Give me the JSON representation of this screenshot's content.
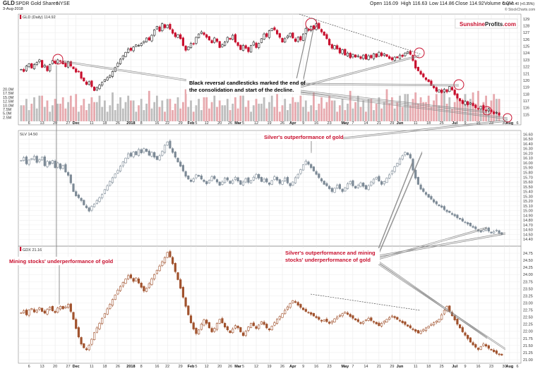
{
  "header": {
    "symbol": "GLD",
    "name": "SPDR Gold Shares",
    "exchange": "NYSE",
    "date": "3-Aug-2018",
    "open": "Open 116.09",
    "high": "High 116.63",
    "low": "Low 114.86",
    "close": "Close 114.92",
    "volume": "Volume 6.0M",
    "change": "Chg +0.40 (+0.35%)",
    "copyright": "© StockCharts.com"
  },
  "brand": {
    "part1": "Sunshine",
    "part2": "Profits",
    "part3": ".com"
  },
  "colors": {
    "up": "#222222",
    "down": "#c8102e",
    "slv": "#7d8a96",
    "gdx": "#a0522d",
    "vol_up": "#bdbdbd",
    "vol_down": "#e7a9ae",
    "ann_black": "#000000",
    "ann_red": "#c8102e"
  },
  "x_axis": {
    "ticks": [
      {
        "label": "6",
        "i": 3
      },
      {
        "label": "13",
        "i": 8
      },
      {
        "label": "20",
        "i": 13
      },
      {
        "label": "27",
        "i": 18
      },
      {
        "label": "Dec",
        "i": 21,
        "bold": true
      },
      {
        "label": "11",
        "i": 27
      },
      {
        "label": "18",
        "i": 32
      },
      {
        "label": "26",
        "i": 37
      },
      {
        "label": "2018",
        "i": 42,
        "bold": true
      },
      {
        "label": "8",
        "i": 46
      },
      {
        "label": "16",
        "i": 52
      },
      {
        "label": "22",
        "i": 56
      },
      {
        "label": "29",
        "i": 61
      },
      {
        "label": "Feb",
        "i": 65,
        "bold": true
      },
      {
        "label": "5",
        "i": 67
      },
      {
        "label": "12",
        "i": 71
      },
      {
        "label": "20",
        "i": 76
      },
      {
        "label": "26",
        "i": 80
      },
      {
        "label": "Mar",
        "i": 83,
        "bold": true
      },
      {
        "label": "5",
        "i": 85
      },
      {
        "label": "12",
        "i": 90
      },
      {
        "label": "19",
        "i": 95
      },
      {
        "label": "26",
        "i": 100
      },
      {
        "label": "Apr",
        "i": 104,
        "bold": true
      },
      {
        "label": "9",
        "i": 108
      },
      {
        "label": "16",
        "i": 113
      },
      {
        "label": "23",
        "i": 118
      },
      {
        "label": "May",
        "i": 124,
        "bold": true
      },
      {
        "label": "7",
        "i": 127
      },
      {
        "label": "14",
        "i": 132
      },
      {
        "label": "21",
        "i": 137
      },
      {
        "label": "29",
        "i": 142
      },
      {
        "label": "Jun",
        "i": 145,
        "bold": true
      },
      {
        "label": "11",
        "i": 151
      },
      {
        "label": "18",
        "i": 156
      },
      {
        "label": "25",
        "i": 161
      },
      {
        "label": "Jul",
        "i": 166,
        "bold": true
      },
      {
        "label": "9",
        "i": 170
      },
      {
        "label": "16",
        "i": 175
      },
      {
        "label": "23",
        "i": 180
      },
      {
        "label": "30",
        "i": 185
      },
      {
        "label": "Aug",
        "i": 187,
        "bold": true
      },
      {
        "label": "6",
        "i": 190
      }
    ]
  },
  "annotations": {
    "reversal_line1": "Black reversal candlesticks marked the end of",
    "reversal_line2": "the consolidation and start of the decline.",
    "silver_outperf": "Silver's outperformance of gold",
    "miners_underperf": "Mining stocks' underperformance of gold",
    "silver_miners_line1": "Silver's outperformance and mining",
    "silver_miners_line2": "stocks' underperformance of gold"
  },
  "chart_data": [
    {
      "type": "candlestick",
      "title": "GLD (Daily) 114.92",
      "ylim": [
        114.0,
        129.5
      ],
      "yticks": [
        115,
        116,
        117,
        118,
        119,
        120,
        121,
        122,
        123,
        124,
        125,
        126,
        127,
        128,
        129
      ],
      "closes": [
        121.6,
        121.3,
        122.1,
        122.4,
        121.8,
        122.3,
        122.6,
        123.0,
        121.9,
        122.2,
        121.4,
        122.3,
        122.9,
        122.5,
        123.0,
        122.8,
        122.4,
        122.0,
        122.7,
        122.1,
        121.7,
        121.2,
        121.3,
        120.3,
        119.9,
        119.4,
        119.8,
        119.1,
        118.5,
        118.9,
        119.3,
        119.7,
        120.1,
        120.4,
        120.7,
        121.3,
        121.9,
        122.5,
        123.1,
        123.6,
        124.1,
        124.6,
        124.4,
        124.9,
        125.2,
        125.1,
        125.4,
        125.7,
        126.2,
        125.9,
        126.6,
        127.4,
        127.9,
        127.2,
        128.3,
        127.7,
        128.1,
        127.5,
        126.9,
        126.4,
        126.7,
        126.1,
        125.1,
        124.4,
        124.9,
        125.4,
        125.3,
        126.3,
        126.8,
        127.1,
        126.7,
        126.3,
        125.9,
        125.5,
        126.2,
        125.7,
        124.8,
        125.2,
        125.6,
        126.3,
        126.0,
        126.6,
        125.6,
        125.1,
        124.5,
        125.1,
        124.7,
        124.2,
        125.1,
        125.6,
        124.8,
        125.4,
        126.1,
        126.8,
        126.4,
        127.3,
        127.6,
        127.4,
        126.8,
        126.3,
        125.6,
        126.1,
        126.5,
        126.9,
        126.2,
        125.7,
        126.3,
        125.9,
        126.8,
        127.6,
        127.3,
        127.9,
        127.5,
        128.3,
        127.6,
        127.1,
        126.6,
        126.1,
        125.2,
        124.7,
        125.1,
        124.6,
        124.0,
        124.5,
        123.7,
        124.0,
        123.3,
        123.8,
        123.4,
        123.6,
        123.2,
        123.7,
        123.1,
        123.6,
        123.3,
        123.9,
        123.4,
        124.1,
        123.6,
        123.9,
        123.5,
        123.2,
        123.0,
        123.4,
        123.3,
        123.7,
        123.5,
        124.0,
        124.2,
        123.8,
        122.9,
        121.8,
        121.4,
        120.9,
        120.5,
        120.1,
        119.8,
        119.3,
        118.9,
        118.4,
        118.6,
        118.2,
        118.7,
        118.3,
        119.1,
        118.6,
        117.9,
        117.4,
        117.0,
        116.6,
        116.9,
        116.4,
        116.7,
        116.3,
        116.0,
        115.8,
        116.2,
        115.7,
        115.5,
        115.8,
        115.4,
        115.1,
        115.3,
        114.9
      ],
      "volume_ylim": [
        0,
        22
      ],
      "volume_yticks": [
        {
          "v": 2.5,
          "label": "2.5M"
        },
        {
          "v": 5.0,
          "label": "5.0M"
        },
        {
          "v": 7.5,
          "label": "7.5M"
        },
        {
          "v": 10.0,
          "label": "10.0M"
        },
        {
          "v": 12.5,
          "label": "12.5M"
        },
        {
          "v": 15.0,
          "label": "15.0M"
        },
        {
          "v": 17.5,
          "label": "17.5M"
        },
        {
          "v": 20.0,
          "label": "20.0M"
        }
      ]
    },
    {
      "type": "candlestick",
      "title": "SLV 14.50",
      "ylim": [
        14.3,
        16.65
      ],
      "yticks": [
        14.4,
        14.5,
        14.6,
        14.7,
        14.8,
        14.9,
        15.0,
        15.1,
        15.2,
        15.3,
        15.4,
        15.5,
        15.6,
        15.7,
        15.8,
        15.9,
        16.0,
        16.1,
        16.2,
        16.3,
        16.4,
        16.5,
        16.6
      ],
      "closes": [
        16.05,
        16.11,
        15.98,
        16.06,
        16.09,
        16.14,
        16.01,
        16.07,
        16.12,
        15.94,
        16.03,
        15.97,
        16.05,
        15.9,
        16.0,
        15.88,
        15.95,
        15.81,
        15.74,
        15.58,
        15.4,
        15.31,
        15.27,
        15.21,
        15.12,
        15.06,
        14.99,
        15.09,
        15.14,
        15.21,
        15.27,
        15.34,
        15.44,
        15.52,
        15.61,
        15.69,
        15.77,
        15.84,
        15.93,
        16.02,
        16.1,
        16.19,
        16.14,
        16.23,
        16.17,
        16.28,
        16.21,
        16.3,
        16.24,
        16.16,
        16.22,
        16.12,
        16.07,
        16.15,
        16.24,
        16.37,
        16.44,
        16.31,
        16.22,
        16.12,
        16.02,
        15.93,
        15.83,
        15.72,
        15.66,
        15.61,
        15.67,
        15.75,
        15.72,
        15.66,
        15.61,
        15.56,
        15.64,
        15.71,
        15.67,
        15.6,
        15.53,
        15.6,
        15.68,
        15.64,
        15.57,
        15.63,
        15.7,
        15.62,
        15.55,
        15.6,
        15.67,
        15.59,
        15.63,
        15.7,
        15.76,
        15.68,
        15.61,
        15.66,
        15.6,
        15.55,
        15.63,
        15.71,
        15.64,
        15.57,
        15.62,
        15.68,
        15.58,
        15.52,
        15.6,
        15.69,
        15.76,
        15.86,
        15.96,
        16.04,
        15.97,
        15.9,
        15.83,
        15.76,
        15.69,
        15.62,
        15.55,
        15.52,
        15.46,
        15.4,
        15.47,
        15.53,
        15.46,
        15.4,
        15.48,
        15.56,
        15.61,
        15.52,
        15.47,
        15.53,
        15.58,
        15.51,
        15.45,
        15.52,
        15.6,
        15.66,
        15.7,
        15.62,
        15.55,
        15.61,
        15.68,
        15.75,
        15.83,
        15.92,
        15.99,
        16.08,
        16.15,
        16.22,
        16.17,
        16.1,
        15.85,
        15.68,
        15.55,
        15.45,
        15.4,
        15.34,
        15.28,
        15.24,
        15.18,
        15.14,
        15.1,
        15.07,
        15.02,
        14.98,
        14.96,
        14.92,
        14.89,
        14.85,
        14.82,
        14.78,
        14.75,
        14.72,
        14.68,
        14.65,
        14.62,
        14.58,
        14.55,
        14.6,
        14.63,
        14.57,
        14.53,
        14.56,
        14.59,
        14.53,
        14.5
      ]
    },
    {
      "type": "candlestick",
      "title": "GDX 21.16",
      "ylim": [
        20.95,
        24.95
      ],
      "yticks": [
        21.0,
        21.25,
        21.5,
        21.75,
        22.0,
        22.25,
        22.5,
        22.75,
        23.0,
        23.25,
        23.5,
        23.75,
        24.0,
        24.25,
        24.5,
        24.75
      ],
      "closes": [
        22.65,
        22.72,
        22.58,
        22.75,
        22.8,
        22.68,
        22.74,
        22.83,
        22.7,
        22.64,
        22.77,
        22.85,
        22.72,
        22.66,
        22.82,
        22.88,
        22.79,
        22.86,
        22.95,
        22.7,
        22.42,
        22.1,
        21.8,
        21.55,
        21.42,
        21.35,
        21.51,
        21.72,
        21.95,
        22.12,
        22.28,
        22.46,
        22.62,
        22.79,
        22.95,
        23.12,
        23.28,
        23.45,
        23.58,
        23.72,
        23.84,
        23.96,
        23.88,
        23.76,
        23.88,
        23.7,
        23.55,
        23.42,
        23.52,
        23.68,
        23.85,
        24.0,
        24.15,
        24.3,
        24.45,
        24.6,
        24.78,
        24.62,
        24.38,
        24.1,
        23.82,
        23.52,
        23.2,
        22.88,
        22.58,
        22.3,
        22.08,
        21.92,
        22.05,
        22.25,
        22.4,
        22.28,
        22.12,
        21.98,
        22.1,
        22.28,
        22.42,
        22.3,
        22.15,
        22.05,
        21.95,
        22.08,
        22.2,
        22.12,
        21.98,
        21.85,
        22.0,
        22.15,
        22.28,
        22.2,
        22.1,
        22.22,
        22.34,
        22.24,
        22.12,
        22.05,
        22.18,
        22.3,
        22.42,
        22.52,
        22.62,
        22.74,
        22.86,
        22.98,
        23.08,
        23.02,
        22.92,
        22.84,
        22.76,
        22.7,
        22.66,
        22.6,
        22.54,
        22.48,
        22.42,
        22.36,
        22.4,
        22.34,
        22.28,
        22.36,
        22.44,
        22.5,
        22.56,
        22.62,
        22.68,
        22.6,
        22.52,
        22.46,
        22.4,
        22.34,
        22.28,
        22.34,
        22.4,
        22.46,
        22.38,
        22.32,
        22.26,
        22.2,
        22.28,
        22.36,
        22.42,
        22.48,
        22.54,
        22.48,
        22.42,
        22.36,
        22.3,
        22.24,
        22.18,
        22.12,
        22.06,
        22.0,
        21.94,
        22.0,
        22.06,
        22.12,
        22.18,
        22.24,
        22.3,
        22.36,
        22.42,
        22.58,
        22.74,
        22.88,
        22.7,
        22.55,
        22.4,
        22.25,
        22.12,
        21.98,
        21.86,
        21.74,
        21.62,
        21.52,
        21.44,
        21.36,
        21.46,
        21.55,
        21.48,
        21.4,
        21.34,
        21.28,
        21.22,
        21.18,
        21.16
      ]
    }
  ]
}
